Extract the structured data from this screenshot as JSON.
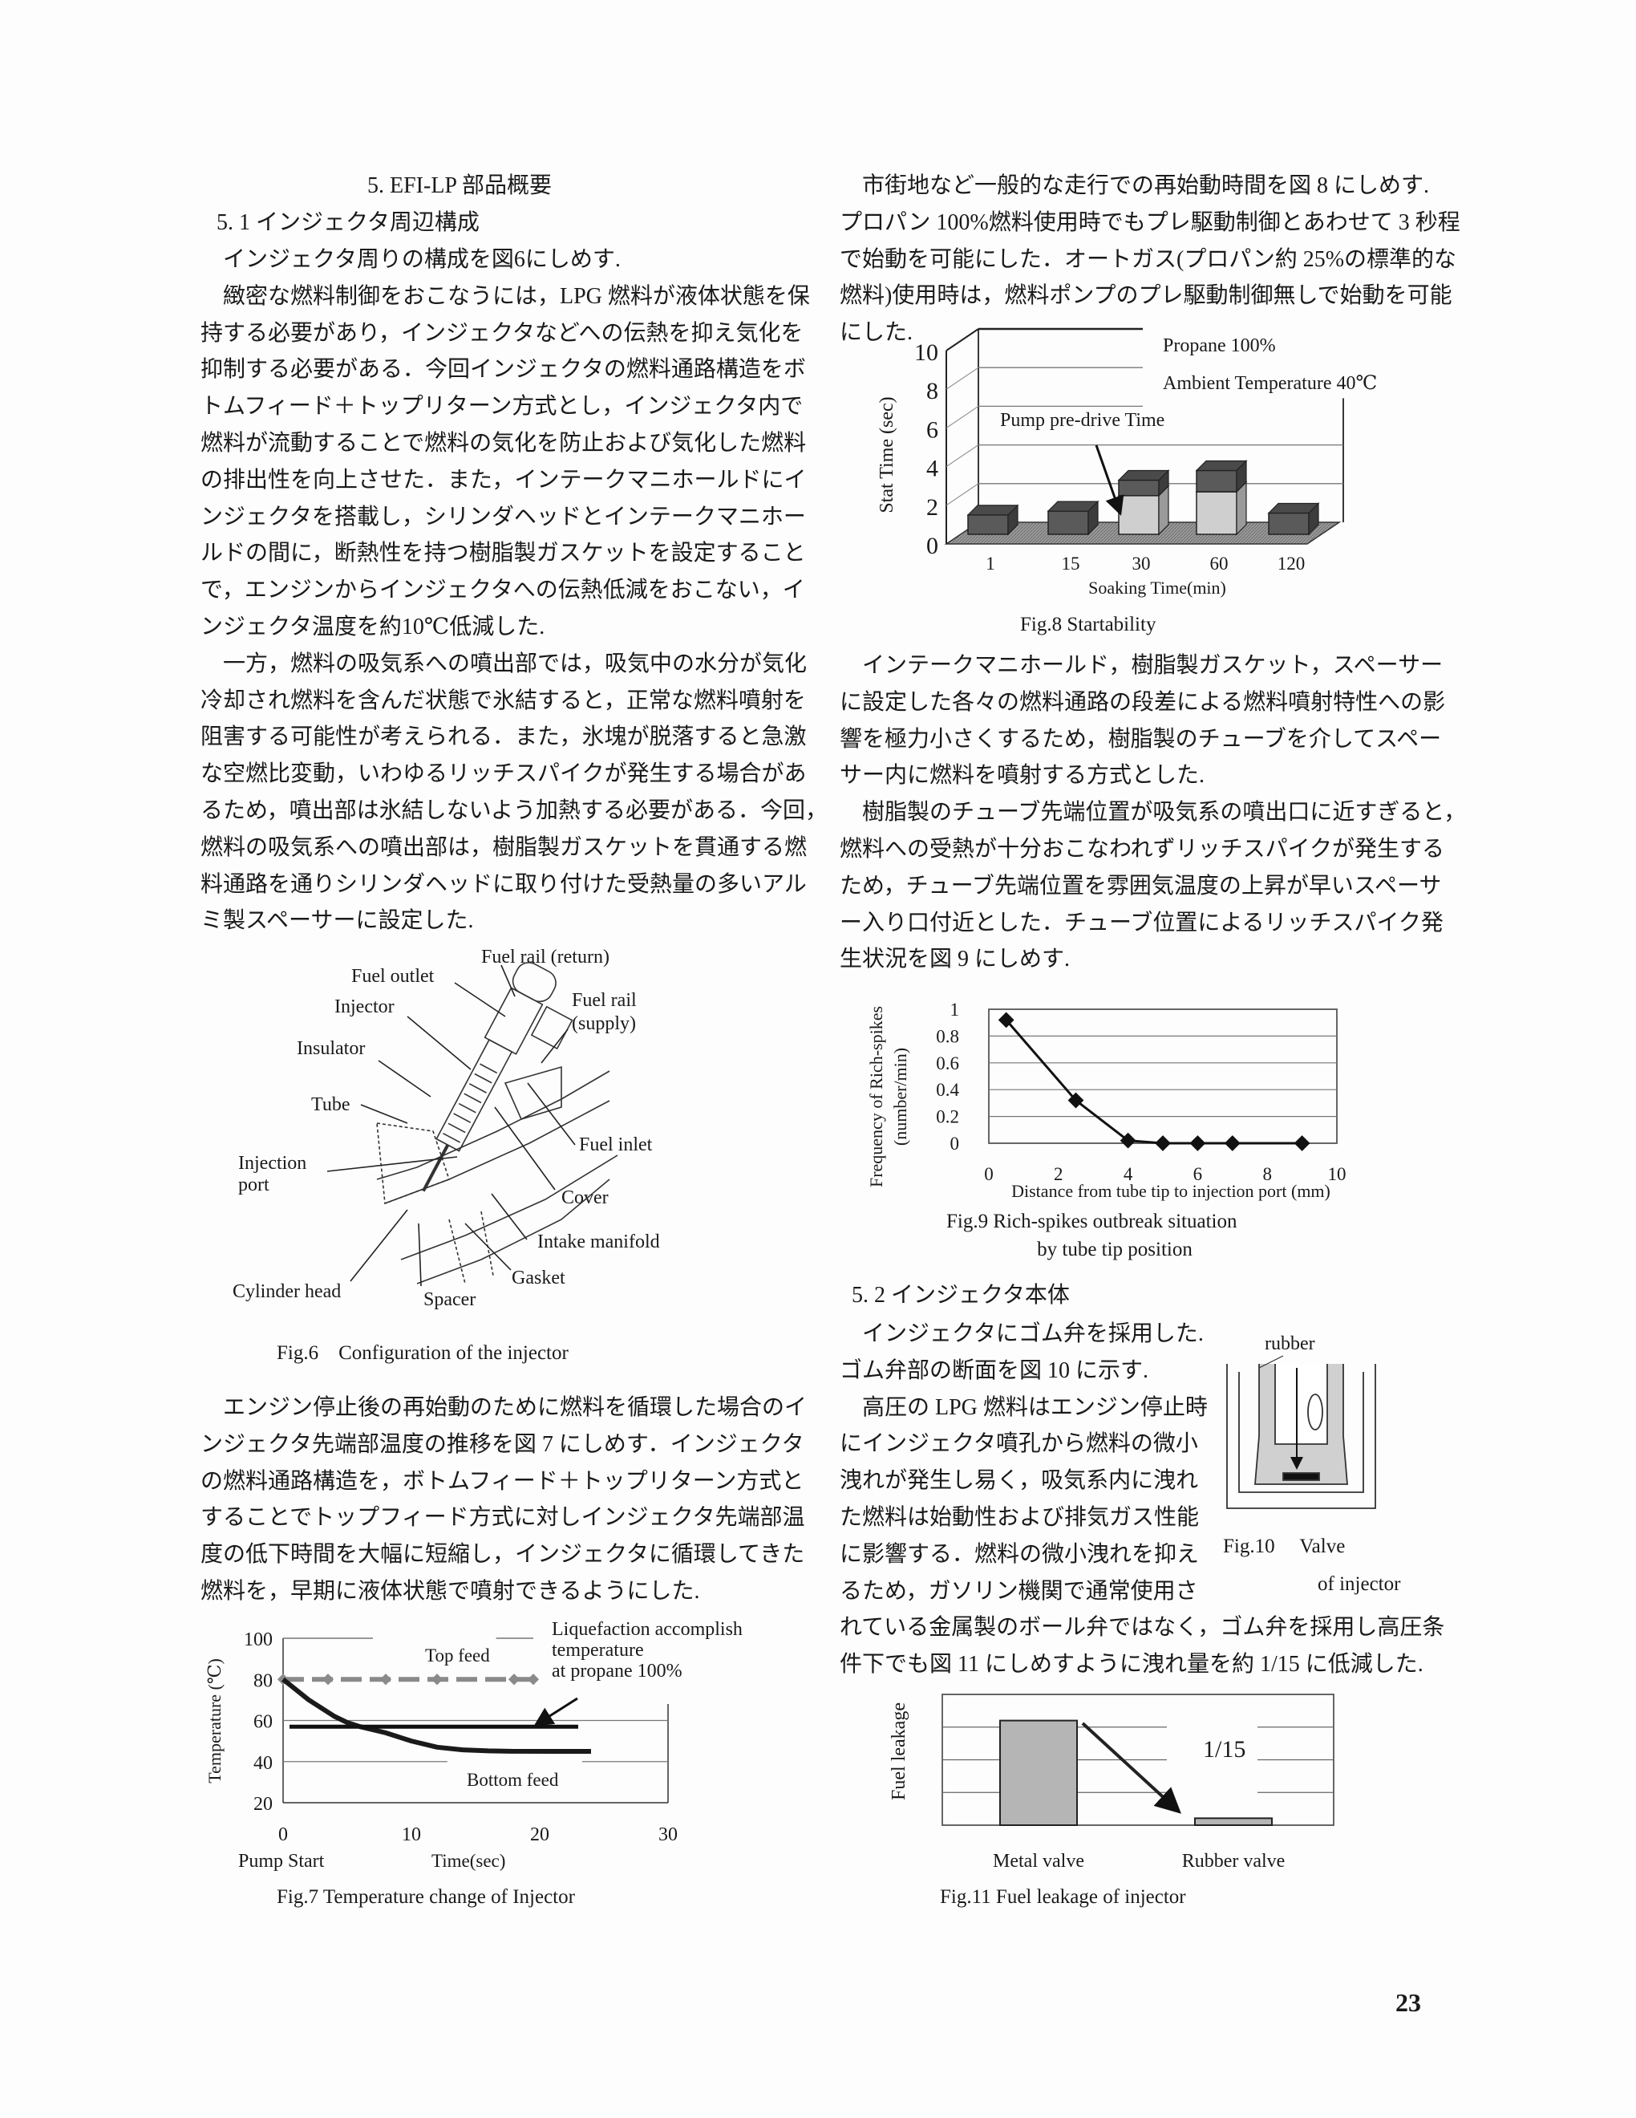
{
  "left_column": {
    "section_heading": "5.  EFI-LP 部品概要",
    "subsection_heading": "5. 1  インジェクタ周辺構成",
    "block1": [
      [
        "インジェクタ周りの構成を図6にしめす."
      ],
      [
        "緻密な燃料制御をおこなうには，LPG 燃料が液体状態を保",
        "持する必要があり，インジェクタなどへの伝熱を抑え気化を",
        "抑制する必要がある．今回インジェクタの燃料通路構造をボ",
        "トムフィード＋トップリターン方式とし，インジェクタ内で",
        "燃料が流動することで燃料の気化を防止および気化した燃料",
        "の排出性を向上させた．また，インテークマニホールドにイ",
        "ンジェクタを搭載し，シリンダヘッドとインテークマニホー",
        "ルドの間に，断熱性を持つ樹脂製ガスケットを設定すること",
        "で，エンジンからインジェクタへの伝熱低減をおこない，イ",
        "ンジェクタ温度を約10℃低減した."
      ],
      [
        "一方，燃料の吸気系への噴出部では，吸気中の水分が気化",
        "冷却され燃料を含んだ状態で氷結すると，正常な燃料噴射を",
        "阻害する可能性が考えられる．また，氷塊が脱落すると急激",
        "な空燃比変動，いわゆるリッチスパイクが発生する場合があ",
        "るため，噴出部は氷結しないよう加熱する必要がある．今回，",
        "燃料の吸気系への噴出部は，樹脂製ガスケットを貫通する燃",
        "料通路を通りシリンダヘッドに取り付けた受熱量の多いアル",
        "ミ製スペーサーに設定した."
      ]
    ],
    "block2": [
      [
        "エンジン停止後の再始動のために燃料を循環した場合のイ",
        "ンジェクタ先端部温度の推移を図 7 にしめす．インジェクタ",
        "の燃料通路構造を，ボトムフィード＋トップリターン方式と",
        "することでトップフィード方式に対しインジェクタ先端部温",
        "度の低下時間を大幅に短縮し，インジェクタに循環してきた",
        "燃料を，早期に液体状態で噴射できるようにした."
      ]
    ]
  },
  "right_column": {
    "block1": [
      [
        "市街地など一般的な走行での再始動時間を図 8 にしめす.",
        "プロパン 100%燃料使用時でもプレ駆動制御とあわせて 3 秒程",
        "で始動を可能にした．オートガス(プロパン約 25%の標準的な",
        "燃料)使用時は，燃料ポンプのプレ駆動制御無しで始動を可能",
        "にした."
      ]
    ],
    "block2": [
      [
        "インテークマニホールド，樹脂製ガスケット，スペーサー",
        "に設定した各々の燃料通路の段差による燃料噴射特性への影",
        "響を極力小さくするため，樹脂製のチューブを介してスペー",
        "サー内に燃料を噴射する方式とした."
      ],
      [
        "樹脂製のチューブ先端位置が吸気系の噴出口に近すぎると，",
        "燃料への受熱が十分おこなわれずリッチスパイクが発生する",
        "ため，チューブ先端位置を雰囲気温度の上昇が早いスペーサ",
        "ー入り口付近とした．チューブ位置によるリッチスパイク発",
        "生状況を図 9 にしめす."
      ]
    ],
    "subsection_heading": "5. 2  インジェクタ本体",
    "block3": [
      [
        "インジェクタにゴム弁を採用した.",
        "ゴム弁部の断面を図 10 に示す."
      ],
      [
        "高圧の LPG 燃料はエンジン停止時",
        "にインジェクタ噴孔から燃料の微小",
        "洩れが発生し易く，吸気系内に洩れ",
        "た燃料は始動性および排気ガス性能",
        "に影響する．燃料の微小洩れを抑え",
        "るため，ガソリン機関で通常使用さ",
        "れている金属製のボール弁ではなく，ゴム弁を採用し高圧条",
        "件下でも図 11 にしめすように洩れ量を約 1/15 に低減した."
      ]
    ]
  },
  "fig6": {
    "caption": "Fig.6    Configuration of the injector",
    "labels": {
      "fuel_rail_return": "Fuel rail (return)",
      "fuel_outlet": "Fuel outlet",
      "injector": "Injector",
      "fuel_rail_supply_1": "Fuel rail",
      "fuel_rail_supply_2": "(supply)",
      "insulator": "Insulator",
      "tube": "Tube",
      "fuel_inlet": "Fuel inlet",
      "injection_port_1": "Injection",
      "injection_port_2": "port",
      "cover": "Cover",
      "intake_manifold": "Intake manifold",
      "gasket": "Gasket",
      "cylinder_head": "Cylinder head",
      "spacer": "Spacer"
    }
  },
  "fig10": {
    "caption_1": "Fig.10     Valve",
    "caption_2": "of injector",
    "label": "rubber"
  },
  "chart_data": [
    {
      "id": "fig7",
      "type": "line",
      "caption": "Fig.7     Temperature change of Injector",
      "xlabel": "Time(sec)",
      "x_start_label": "Pump Start",
      "ylabel": "Temperature (℃)",
      "xlim": [
        0,
        30
      ],
      "ylim": [
        20,
        100
      ],
      "x_ticks": [
        "0",
        "10",
        "20",
        "30"
      ],
      "y_ticks": [
        "100",
        "80",
        "60",
        "40",
        "20"
      ],
      "grid": true,
      "annotations": [
        "Top feed",
        "Bottom feed",
        "Liquefaction   accomplish",
        "temperature",
        "at propane 100%"
      ],
      "series": [
        {
          "name": "Top feed",
          "style": "dashed-gray",
          "x": [
            0,
            3.5,
            8,
            12,
            18,
            19.5
          ],
          "y": [
            80,
            80,
            80,
            80,
            80,
            80
          ]
        },
        {
          "name": "Bottom feed",
          "style": "solid-black",
          "x": [
            0,
            1,
            2,
            3,
            4,
            5,
            6,
            8,
            10,
            12,
            14,
            16,
            18,
            21,
            24
          ],
          "y": [
            80,
            75,
            70,
            66,
            62,
            59,
            57,
            54,
            50,
            47,
            45.7,
            45.2,
            45,
            45,
            45
          ]
        },
        {
          "name": "Liquefaction accomplish temperature at propane 100%",
          "style": "solid-black",
          "x": [
            0.5,
            23
          ],
          "y": [
            57,
            57
          ]
        }
      ],
      "colors": {
        "top_feed": "#8a8a8a",
        "bottom_feed": "#1a1a1a"
      }
    },
    {
      "id": "fig8",
      "type": "bar",
      "stacked": true,
      "three_d": true,
      "caption": "Fig.8      Startability",
      "xlabel": "Soaking Time(min)",
      "ylabel": "Stat Time (sec)",
      "ylim": [
        0,
        10
      ],
      "y_ticks": [
        "10",
        "8",
        "6",
        "4",
        "2",
        "0"
      ],
      "categories": [
        "1",
        "15",
        "30",
        "60",
        "120"
      ],
      "annotations": [
        "Propane 100%",
        "Ambient Temperature 40℃",
        "Pump pre-drive Time"
      ],
      "series": [
        {
          "name": "Pump pre-drive Time",
          "values": [
            0,
            0,
            2.0,
            2.2,
            0
          ],
          "color": "#cfcfcf"
        },
        {
          "values": [
            1.0,
            1.2,
            0.8,
            1.1,
            1.1
          ],
          "color": "#5a5a5a"
        }
      ],
      "grid": true
    },
    {
      "id": "fig9",
      "type": "line",
      "caption_1": "Fig.9     Rich-spikes outbreak situation",
      "caption_2": "by tube tip position",
      "xlabel": "Distance from tube tip to injection port (mm)",
      "ylabel_1": "Frequency of Rich-spikes",
      "ylabel_2": "(number/min)",
      "xlim": [
        0,
        10
      ],
      "ylim": [
        0,
        1
      ],
      "x_ticks": [
        "0",
        "2",
        "4",
        "6",
        "8",
        "10"
      ],
      "y_ticks": [
        "1",
        "0.8",
        "0.6",
        "0.4",
        "0.2",
        "0"
      ],
      "marker": "diamond",
      "grid": true,
      "x": [
        0.5,
        2.5,
        4,
        5,
        6,
        7,
        9
      ],
      "y": [
        0.92,
        0.32,
        0.02,
        0,
        0,
        0,
        0
      ]
    },
    {
      "id": "fig11",
      "type": "bar",
      "caption": "Fig.11     Fuel leakage of injector",
      "ylabel": "Fuel leakage",
      "categories": [
        "Metal    valve",
        "Rubber    valve"
      ],
      "values": [
        0.8,
        0.053
      ],
      "ylim": [
        0,
        1
      ],
      "annotation": "1/15",
      "grid": true,
      "color": "#b5b5b5"
    }
  ],
  "page_number": "23"
}
